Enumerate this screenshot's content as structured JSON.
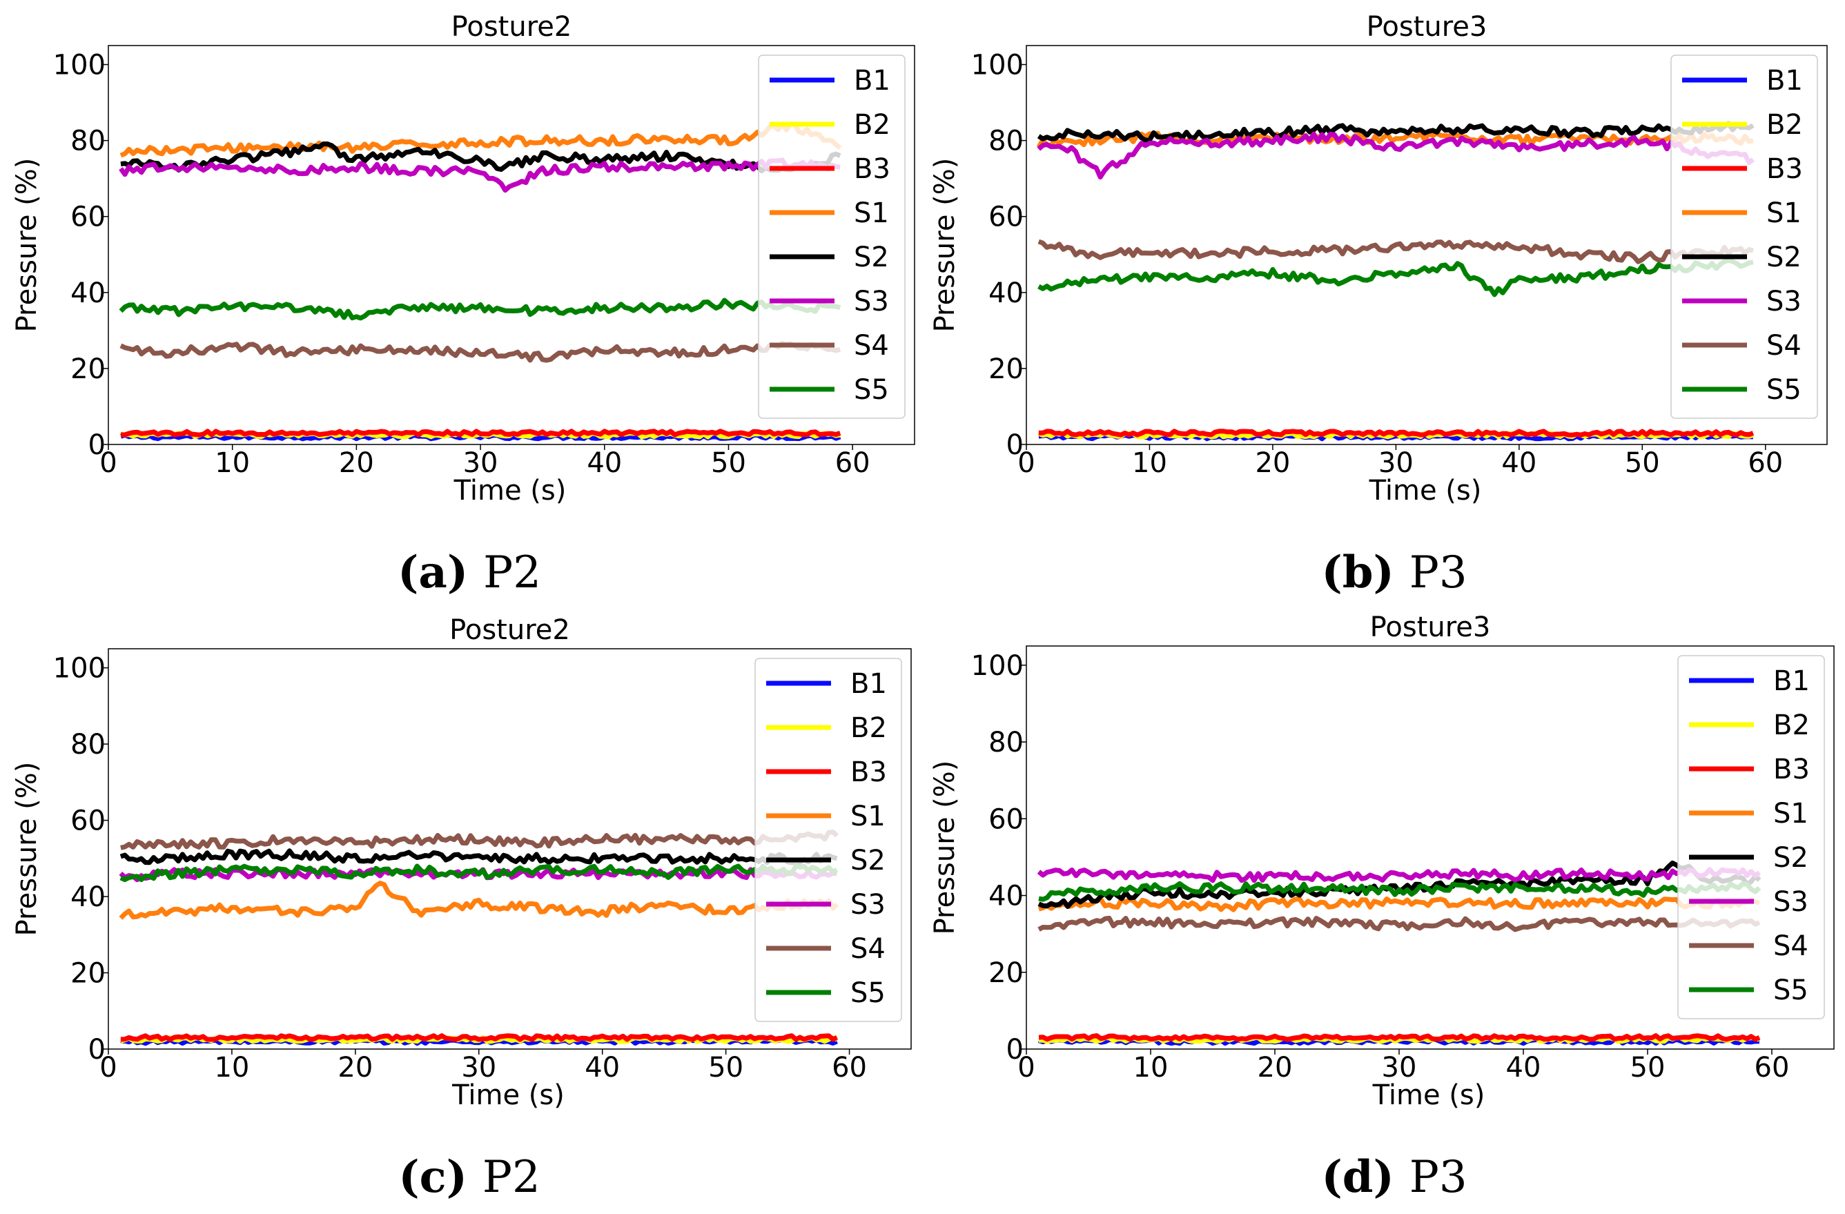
{
  "figure": {
    "panels": [
      {
        "label": "(a)",
        "caption": "P2"
      },
      {
        "label": "(b)",
        "caption": "P3"
      },
      {
        "label": "(c)",
        "caption": "P2"
      },
      {
        "label": "(d)",
        "caption": "P3"
      }
    ]
  },
  "legend": [
    {
      "name": "B1",
      "color": "#0a0aff"
    },
    {
      "name": "B2",
      "color": "#ffff00"
    },
    {
      "name": "B3",
      "color": "#ff0000"
    },
    {
      "name": "S1",
      "color": "#ff7f0e"
    },
    {
      "name": "S2",
      "color": "#000000"
    },
    {
      "name": "S3",
      "color": "#bf00bf"
    },
    {
      "name": "S4",
      "color": "#8c564b"
    },
    {
      "name": "S5",
      "color": "#008000"
    }
  ],
  "chart_data": [
    {
      "type": "line",
      "title": "Posture2",
      "xlabel": "Time (s)",
      "ylabel": "Pressure (%)",
      "xlim": [
        0,
        65
      ],
      "ylim": [
        0,
        105
      ],
      "xticks": [
        0,
        10,
        20,
        30,
        40,
        50,
        60
      ],
      "yticks": [
        0,
        20,
        40,
        60,
        80,
        100
      ],
      "legend_position": "right",
      "series": [
        {
          "name": "B1",
          "x": [
            1,
            10,
            20,
            30,
            40,
            50,
            59
          ],
          "values": [
            2,
            2,
            2,
            2,
            2,
            2,
            2
          ]
        },
        {
          "name": "B2",
          "x": [
            1,
            10,
            20,
            30,
            40,
            50,
            59
          ],
          "values": [
            2.5,
            2.5,
            2.5,
            2.5,
            2.5,
            2.5,
            2.5
          ]
        },
        {
          "name": "B3",
          "x": [
            1,
            10,
            20,
            30,
            40,
            50,
            59
          ],
          "values": [
            3,
            3,
            3,
            3,
            3,
            3,
            3
          ]
        },
        {
          "name": "S1",
          "x": [
            1,
            5,
            10,
            15,
            20,
            25,
            30,
            35,
            40,
            45,
            50,
            55,
            59
          ],
          "values": [
            77,
            77.5,
            78,
            78.5,
            78,
            79,
            79.5,
            80,
            80,
            80.5,
            80,
            84,
            78
          ]
        },
        {
          "name": "S2",
          "x": [
            1,
            5,
            10,
            15,
            17,
            20,
            25,
            30,
            32,
            35,
            40,
            45,
            50,
            55,
            59
          ],
          "values": [
            74,
            73,
            75,
            77,
            79,
            75,
            77,
            75,
            73,
            76,
            75,
            76,
            74,
            72,
            76
          ]
        },
        {
          "name": "S3",
          "x": [
            1,
            5,
            10,
            15,
            20,
            25,
            30,
            32,
            35,
            40,
            45,
            50,
            55,
            59
          ],
          "values": [
            72,
            73,
            73,
            72,
            73,
            72,
            72,
            67,
            72,
            73,
            73,
            73,
            74,
            73
          ]
        },
        {
          "name": "S4",
          "x": [
            1,
            5,
            10,
            15,
            20,
            25,
            30,
            35,
            40,
            45,
            50,
            55,
            59
          ],
          "values": [
            25,
            24,
            26,
            24,
            25,
            25,
            24,
            23,
            25,
            24,
            25,
            26,
            25
          ]
        },
        {
          "name": "S5",
          "x": [
            1,
            5,
            10,
            15,
            20,
            25,
            30,
            35,
            40,
            45,
            50,
            55,
            59
          ],
          "values": [
            36,
            35,
            36,
            36,
            34,
            36,
            36,
            35,
            36,
            36,
            37,
            36,
            36
          ]
        }
      ]
    },
    {
      "type": "line",
      "title": "Posture3",
      "xlabel": "Time (s)",
      "ylabel": "Pressure (%)",
      "xlim": [
        0,
        65
      ],
      "ylim": [
        0,
        105
      ],
      "xticks": [
        0,
        10,
        20,
        30,
        40,
        50,
        60
      ],
      "yticks": [
        0,
        20,
        40,
        60,
        80,
        100
      ],
      "legend_position": "right",
      "series": [
        {
          "name": "B1",
          "x": [
            1,
            10,
            20,
            30,
            40,
            50,
            59
          ],
          "values": [
            2,
            2,
            2,
            2,
            2,
            2,
            2
          ]
        },
        {
          "name": "B2",
          "x": [
            1,
            10,
            20,
            30,
            40,
            50,
            59
          ],
          "values": [
            2.5,
            2.5,
            2.5,
            2.5,
            2.5,
            2.5,
            2.5
          ]
        },
        {
          "name": "B3",
          "x": [
            1,
            10,
            20,
            30,
            40,
            50,
            59
          ],
          "values": [
            3,
            3,
            3,
            3,
            3,
            3,
            3
          ]
        },
        {
          "name": "S1",
          "x": [
            1,
            5,
            10,
            15,
            20,
            25,
            30,
            35,
            40,
            45,
            50,
            55,
            59
          ],
          "values": [
            79,
            80,
            81,
            80,
            81,
            80,
            81,
            81,
            80,
            81,
            80,
            81,
            80
          ]
        },
        {
          "name": "S2",
          "x": [
            1,
            5,
            10,
            15,
            20,
            25,
            30,
            35,
            40,
            45,
            50,
            55,
            59
          ],
          "values": [
            81,
            82,
            81,
            82,
            82,
            83,
            82,
            83,
            83,
            82,
            83,
            83,
            84
          ]
        },
        {
          "name": "S3",
          "x": [
            1,
            3,
            6,
            10,
            15,
            20,
            25,
            30,
            35,
            40,
            45,
            50,
            55,
            59
          ],
          "values": [
            78,
            79,
            71,
            80,
            79,
            80,
            81,
            78,
            80,
            78,
            79,
            80,
            77,
            75
          ]
        },
        {
          "name": "S4",
          "x": [
            1,
            5,
            10,
            15,
            20,
            25,
            30,
            35,
            40,
            45,
            50,
            55,
            59
          ],
          "values": [
            53,
            50,
            51,
            50,
            51,
            51,
            52,
            53,
            52,
            50,
            49,
            51,
            51
          ]
        },
        {
          "name": "S5",
          "x": [
            1,
            5,
            10,
            15,
            20,
            25,
            30,
            35,
            38,
            40,
            45,
            50,
            55,
            59
          ],
          "values": [
            41,
            43,
            44,
            44,
            45,
            43,
            45,
            47,
            40,
            43,
            44,
            46,
            47,
            48
          ]
        }
      ]
    },
    {
      "type": "line",
      "title": "Posture2",
      "xlabel": "Time (s)",
      "ylabel": "Pressure (%)",
      "xlim": [
        0,
        65
      ],
      "ylim": [
        0,
        105
      ],
      "xticks": [
        0,
        10,
        20,
        30,
        40,
        50,
        60
      ],
      "yticks": [
        0,
        20,
        40,
        60,
        80,
        100
      ],
      "legend_position": "right",
      "series": [
        {
          "name": "B1",
          "x": [
            1,
            10,
            20,
            30,
            40,
            50,
            59
          ],
          "values": [
            2,
            2,
            2,
            2,
            2,
            2,
            2
          ]
        },
        {
          "name": "B2",
          "x": [
            1,
            10,
            20,
            30,
            40,
            50,
            59
          ],
          "values": [
            2.5,
            2.5,
            2.5,
            2.5,
            2.5,
            2.5,
            2.5
          ]
        },
        {
          "name": "B3",
          "x": [
            1,
            10,
            20,
            30,
            40,
            50,
            59
          ],
          "values": [
            3,
            3,
            3,
            3,
            3,
            3,
            3
          ]
        },
        {
          "name": "S1",
          "x": [
            1,
            5,
            10,
            15,
            20,
            22,
            25,
            30,
            35,
            40,
            45,
            50,
            55,
            59
          ],
          "values": [
            35,
            36,
            37,
            36,
            37,
            43,
            36,
            38,
            37,
            36,
            38,
            36,
            38,
            38
          ]
        },
        {
          "name": "S2",
          "x": [
            1,
            5,
            10,
            15,
            20,
            25,
            30,
            35,
            40,
            45,
            50,
            55,
            59
          ],
          "values": [
            50,
            50,
            51,
            51,
            50,
            51,
            50,
            50,
            50,
            50,
            50,
            50,
            50
          ]
        },
        {
          "name": "S3",
          "x": [
            1,
            5,
            10,
            15,
            20,
            25,
            30,
            35,
            40,
            45,
            50,
            55,
            59
          ],
          "values": [
            45,
            46,
            46,
            46,
            46,
            46,
            46,
            46,
            46,
            46,
            46,
            46,
            46
          ]
        },
        {
          "name": "S4",
          "x": [
            1,
            5,
            10,
            15,
            20,
            25,
            30,
            35,
            40,
            45,
            50,
            55,
            59
          ],
          "values": [
            53,
            54,
            54,
            55,
            54,
            55,
            55,
            54,
            55,
            55,
            55,
            55,
            56
          ]
        },
        {
          "name": "S5",
          "x": [
            1,
            5,
            10,
            15,
            20,
            25,
            30,
            35,
            40,
            45,
            50,
            55,
            59
          ],
          "values": [
            45,
            46,
            47,
            47,
            46,
            47,
            46,
            47,
            47,
            46,
            47,
            47,
            47
          ]
        }
      ]
    },
    {
      "type": "line",
      "title": "Posture3",
      "xlabel": "Time (s)",
      "ylabel": "Pressure (%)",
      "xlim": [
        0,
        65
      ],
      "ylim": [
        0,
        105
      ],
      "xticks": [
        0,
        10,
        20,
        30,
        40,
        50,
        60
      ],
      "yticks": [
        0,
        20,
        40,
        60,
        80,
        100
      ],
      "legend_position": "right",
      "series": [
        {
          "name": "B1",
          "x": [
            1,
            10,
            20,
            30,
            40,
            50,
            59
          ],
          "values": [
            2,
            2,
            2,
            2,
            2,
            2,
            2
          ]
        },
        {
          "name": "B2",
          "x": [
            1,
            10,
            20,
            30,
            40,
            50,
            59
          ],
          "values": [
            2.5,
            2.5,
            2.5,
            2.5,
            2.5,
            2.5,
            2.5
          ]
        },
        {
          "name": "B3",
          "x": [
            1,
            10,
            20,
            30,
            40,
            50,
            59
          ],
          "values": [
            3,
            3,
            3,
            3,
            3,
            3,
            3
          ]
        },
        {
          "name": "S1",
          "x": [
            1,
            5,
            10,
            15,
            20,
            25,
            30,
            35,
            40,
            45,
            50,
            55,
            59
          ],
          "values": [
            37,
            38,
            38,
            37,
            38,
            38,
            38,
            38,
            38,
            38,
            38,
            38,
            38
          ]
        },
        {
          "name": "S2",
          "x": [
            1,
            5,
            10,
            15,
            20,
            25,
            30,
            35,
            40,
            45,
            50,
            52,
            55,
            59
          ],
          "values": [
            37,
            39,
            41,
            40,
            41,
            41,
            42,
            43,
            43,
            44,
            44,
            49,
            44,
            44
          ]
        },
        {
          "name": "S3",
          "x": [
            1,
            5,
            10,
            15,
            20,
            25,
            30,
            35,
            40,
            45,
            50,
            55,
            59
          ],
          "values": [
            46,
            46,
            45,
            45,
            45,
            45,
            45,
            46,
            45,
            46,
            45,
            46,
            46
          ]
        },
        {
          "name": "S4",
          "x": [
            1,
            5,
            10,
            15,
            20,
            25,
            30,
            35,
            40,
            45,
            50,
            55,
            59
          ],
          "values": [
            32,
            33,
            33,
            32,
            33,
            33,
            32,
            33,
            32,
            33,
            33,
            33,
            33
          ]
        },
        {
          "name": "S5",
          "x": [
            1,
            5,
            10,
            15,
            20,
            25,
            30,
            35,
            40,
            45,
            50,
            55,
            59
          ],
          "values": [
            40,
            41,
            42,
            42,
            42,
            42,
            41,
            42,
            42,
            42,
            41,
            42,
            42
          ]
        }
      ]
    }
  ]
}
